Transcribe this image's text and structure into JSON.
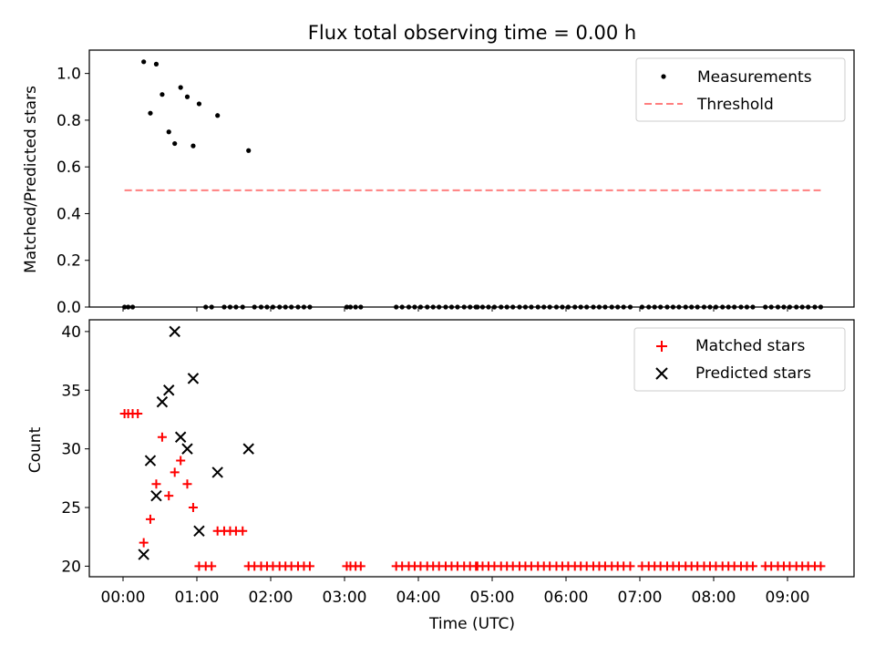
{
  "title": "Flux total observing time = 0.00 h",
  "chart_data": [
    {
      "type": "scatter",
      "ylabel": "Matched/Predicted stars",
      "ylim": [
        0,
        1.1
      ],
      "yticks": [
        0.0,
        0.2,
        0.4,
        0.6,
        0.8,
        1.0
      ],
      "ytick_labels": [
        "0.0",
        "0.2",
        "0.4",
        "0.6",
        "0.8",
        "1.0"
      ],
      "legend": {
        "placement": "top-right",
        "entries": [
          "Measurements",
          "Threshold"
        ]
      },
      "series": [
        {
          "name": "Measurements",
          "kind": "dot",
          "color": "#000000",
          "points": [
            [
              0.02,
              0
            ],
            [
              0.07,
              0
            ],
            [
              0.13,
              0
            ],
            [
              0.28,
              1.05
            ],
            [
              0.37,
              0.83
            ],
            [
              0.45,
              1.04
            ],
            [
              0.53,
              0.91
            ],
            [
              0.62,
              0.75
            ],
            [
              0.7,
              0.7
            ],
            [
              0.78,
              0.94
            ],
            [
              0.87,
              0.9
            ],
            [
              0.95,
              0.69
            ],
            [
              1.03,
              0.87
            ],
            [
              1.12,
              0
            ],
            [
              1.2,
              0
            ],
            [
              1.28,
              0.82
            ],
            [
              1.37,
              0
            ],
            [
              1.45,
              0
            ],
            [
              1.53,
              0
            ],
            [
              1.62,
              0
            ],
            [
              1.7,
              0.67
            ],
            [
              1.78,
              0
            ],
            [
              1.87,
              0
            ],
            [
              1.95,
              0
            ],
            [
              2.03,
              0
            ],
            [
              2.12,
              0
            ],
            [
              2.2,
              0
            ],
            [
              2.28,
              0
            ],
            [
              2.37,
              0
            ],
            [
              2.45,
              0
            ],
            [
              2.53,
              0
            ],
            [
              3.03,
              0
            ],
            [
              3.08,
              0
            ],
            [
              3.15,
              0
            ],
            [
              3.22,
              0
            ],
            [
              3.7,
              0
            ],
            [
              3.78,
              0
            ],
            [
              3.87,
              0
            ],
            [
              3.95,
              0
            ],
            [
              4.03,
              0
            ],
            [
              4.12,
              0
            ],
            [
              4.2,
              0
            ],
            [
              4.28,
              0
            ],
            [
              4.37,
              0
            ],
            [
              4.45,
              0
            ],
            [
              4.53,
              0
            ],
            [
              4.62,
              0
            ],
            [
              4.7,
              0
            ],
            [
              4.78,
              0
            ],
            [
              4.8,
              0
            ],
            [
              4.87,
              0
            ],
            [
              4.95,
              0
            ],
            [
              5.03,
              0
            ],
            [
              5.12,
              0
            ],
            [
              5.2,
              0
            ],
            [
              5.28,
              0
            ],
            [
              5.37,
              0
            ],
            [
              5.45,
              0
            ],
            [
              5.53,
              0
            ],
            [
              5.62,
              0
            ],
            [
              5.7,
              0
            ],
            [
              5.78,
              0
            ],
            [
              5.87,
              0
            ],
            [
              5.95,
              0
            ],
            [
              6.03,
              0
            ],
            [
              6.12,
              0
            ],
            [
              6.2,
              0
            ],
            [
              6.28,
              0
            ],
            [
              6.37,
              0
            ],
            [
              6.45,
              0
            ],
            [
              6.53,
              0
            ],
            [
              6.62,
              0
            ],
            [
              6.7,
              0
            ],
            [
              6.78,
              0
            ],
            [
              6.87,
              0
            ],
            [
              7.03,
              0
            ],
            [
              7.12,
              0
            ],
            [
              7.2,
              0
            ],
            [
              7.28,
              0
            ],
            [
              7.37,
              0
            ],
            [
              7.45,
              0
            ],
            [
              7.53,
              0
            ],
            [
              7.62,
              0
            ],
            [
              7.7,
              0
            ],
            [
              7.78,
              0
            ],
            [
              7.87,
              0
            ],
            [
              7.95,
              0
            ],
            [
              8.03,
              0
            ],
            [
              8.12,
              0
            ],
            [
              8.2,
              0
            ],
            [
              8.28,
              0
            ],
            [
              8.37,
              0
            ],
            [
              8.45,
              0
            ],
            [
              8.53,
              0
            ],
            [
              8.7,
              0
            ],
            [
              8.78,
              0
            ],
            [
              8.87,
              0
            ],
            [
              8.95,
              0
            ],
            [
              9.03,
              0
            ],
            [
              9.12,
              0
            ],
            [
              9.2,
              0
            ],
            [
              9.28,
              0
            ],
            [
              9.37,
              0
            ],
            [
              9.45,
              0
            ]
          ]
        },
        {
          "name": "Threshold",
          "kind": "dashed-line",
          "color": "#ff7f7f",
          "points": [
            [
              0.02,
              0.5
            ],
            [
              9.45,
              0.5
            ]
          ]
        }
      ]
    },
    {
      "type": "scatter",
      "xlabel": "Time (UTC)",
      "ylabel": "Count",
      "ylim": [
        19.1,
        41.0
      ],
      "yticks": [
        20,
        25,
        30,
        35,
        40
      ],
      "ytick_labels": [
        "20",
        "25",
        "30",
        "35",
        "40"
      ],
      "xticks": [
        0,
        1,
        2,
        3,
        4,
        5,
        6,
        7,
        8,
        9
      ],
      "xtick_labels": [
        "00:00",
        "01:00",
        "02:00",
        "03:00",
        "04:00",
        "05:00",
        "06:00",
        "07:00",
        "08:00",
        "09:00"
      ],
      "legend": {
        "placement": "top-right",
        "entries": [
          "Matched stars",
          "Predicted stars"
        ]
      },
      "series": [
        {
          "name": "Matched stars",
          "kind": "plus",
          "color": "#ff0000",
          "points": [
            [
              0.02,
              33
            ],
            [
              0.07,
              33
            ],
            [
              0.13,
              33
            ],
            [
              0.2,
              33
            ],
            [
              0.28,
              22
            ],
            [
              0.37,
              24
            ],
            [
              0.45,
              27
            ],
            [
              0.53,
              31
            ],
            [
              0.62,
              26
            ],
            [
              0.7,
              28
            ],
            [
              0.78,
              29
            ],
            [
              0.87,
              27
            ],
            [
              0.95,
              25
            ],
            [
              1.03,
              20
            ],
            [
              1.12,
              20
            ],
            [
              1.2,
              20
            ],
            [
              1.28,
              23
            ],
            [
              1.37,
              23
            ],
            [
              1.45,
              23
            ],
            [
              1.53,
              23
            ],
            [
              1.62,
              23
            ],
            [
              1.7,
              20
            ],
            [
              1.78,
              20
            ],
            [
              1.87,
              20
            ],
            [
              1.95,
              20
            ],
            [
              2.03,
              20
            ],
            [
              2.12,
              20
            ],
            [
              2.2,
              20
            ],
            [
              2.28,
              20
            ],
            [
              2.37,
              20
            ],
            [
              2.45,
              20
            ],
            [
              2.53,
              20
            ],
            [
              3.03,
              20
            ],
            [
              3.08,
              20
            ],
            [
              3.15,
              20
            ],
            [
              3.22,
              20
            ],
            [
              3.7,
              20
            ],
            [
              3.78,
              20
            ],
            [
              3.87,
              20
            ],
            [
              3.95,
              20
            ],
            [
              4.03,
              20
            ],
            [
              4.12,
              20
            ],
            [
              4.2,
              20
            ],
            [
              4.28,
              20
            ],
            [
              4.37,
              20
            ],
            [
              4.45,
              20
            ],
            [
              4.53,
              20
            ],
            [
              4.62,
              20
            ],
            [
              4.7,
              20
            ],
            [
              4.78,
              20
            ],
            [
              4.8,
              20
            ],
            [
              4.87,
              20
            ],
            [
              4.95,
              20
            ],
            [
              5.03,
              20
            ],
            [
              5.12,
              20
            ],
            [
              5.2,
              20
            ],
            [
              5.28,
              20
            ],
            [
              5.37,
              20
            ],
            [
              5.45,
              20
            ],
            [
              5.53,
              20
            ],
            [
              5.62,
              20
            ],
            [
              5.7,
              20
            ],
            [
              5.78,
              20
            ],
            [
              5.87,
              20
            ],
            [
              5.95,
              20
            ],
            [
              6.03,
              20
            ],
            [
              6.12,
              20
            ],
            [
              6.2,
              20
            ],
            [
              6.28,
              20
            ],
            [
              6.37,
              20
            ],
            [
              6.45,
              20
            ],
            [
              6.53,
              20
            ],
            [
              6.62,
              20
            ],
            [
              6.7,
              20
            ],
            [
              6.78,
              20
            ],
            [
              6.87,
              20
            ],
            [
              7.03,
              20
            ],
            [
              7.12,
              20
            ],
            [
              7.2,
              20
            ],
            [
              7.28,
              20
            ],
            [
              7.37,
              20
            ],
            [
              7.45,
              20
            ],
            [
              7.53,
              20
            ],
            [
              7.62,
              20
            ],
            [
              7.7,
              20
            ],
            [
              7.78,
              20
            ],
            [
              7.87,
              20
            ],
            [
              7.95,
              20
            ],
            [
              8.03,
              20
            ],
            [
              8.12,
              20
            ],
            [
              8.2,
              20
            ],
            [
              8.28,
              20
            ],
            [
              8.37,
              20
            ],
            [
              8.45,
              20
            ],
            [
              8.53,
              20
            ],
            [
              8.7,
              20
            ],
            [
              8.78,
              20
            ],
            [
              8.87,
              20
            ],
            [
              8.95,
              20
            ],
            [
              9.03,
              20
            ],
            [
              9.12,
              20
            ],
            [
              9.2,
              20
            ],
            [
              9.28,
              20
            ],
            [
              9.37,
              20
            ],
            [
              9.45,
              20
            ]
          ]
        },
        {
          "name": "Predicted stars",
          "kind": "x",
          "color": "#000000",
          "points": [
            [
              0.28,
              21
            ],
            [
              0.37,
              29
            ],
            [
              0.45,
              26
            ],
            [
              0.53,
              34
            ],
            [
              0.62,
              35
            ],
            [
              0.7,
              40
            ],
            [
              0.78,
              31
            ],
            [
              0.87,
              30
            ],
            [
              0.95,
              36
            ],
            [
              1.03,
              23
            ],
            [
              1.28,
              28
            ],
            [
              1.7,
              30
            ]
          ]
        }
      ]
    }
  ]
}
